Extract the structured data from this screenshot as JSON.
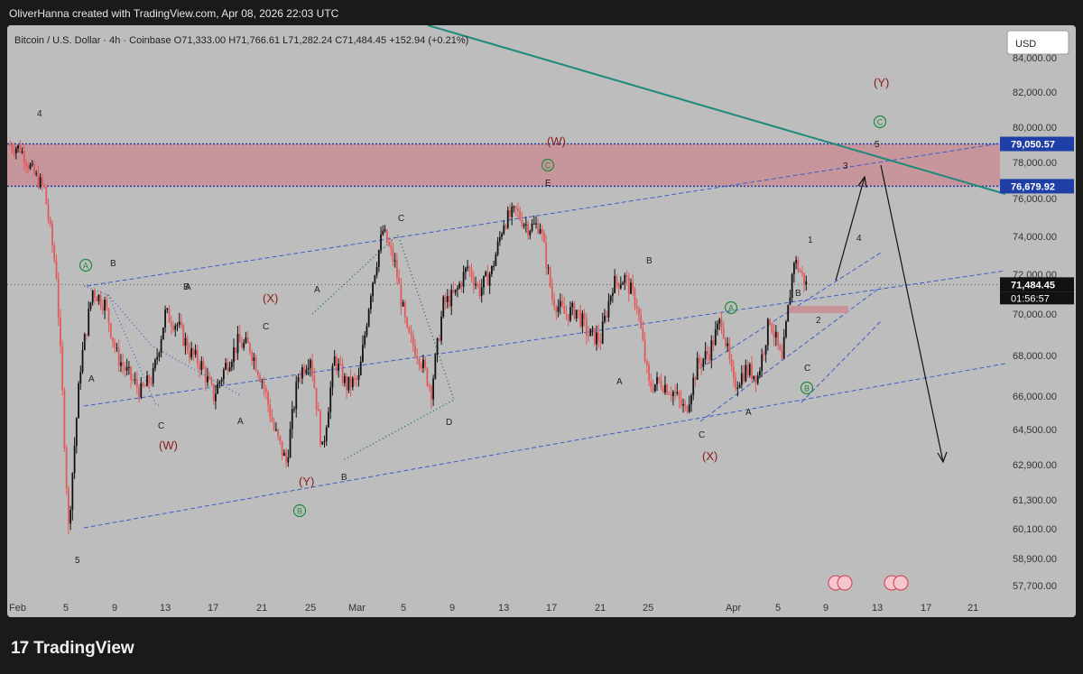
{
  "header": {
    "author_line": "OliverHanna created with TradingView.com, Apr 08, 2026 22:03 UTC",
    "symbol_line": "Bitcoin / U.S. Dollar · 4h · Coinbase  O71,333.00  H71,766.61  L71,282.24  C71,484.45  +152.94 (+0.21%)",
    "currency_button": "USD"
  },
  "footer": {
    "brand": "TradingView",
    "brand_mark": "17"
  },
  "chart_data": {
    "type": "line",
    "title": "",
    "series": [
      {
        "x": [
          "2026-02-01",
          "2026-02-02",
          "2026-02-03",
          "2026-02-04",
          "2026-02-05",
          "2026-02-06",
          "2026-02-07",
          "2026-02-08",
          "2026-02-09",
          "2026-02-10",
          "2026-02-11",
          "2026-02-12",
          "2026-02-13",
          "2026-02-14",
          "2026-02-15",
          "2026-02-16",
          "2026-02-17",
          "2026-02-18",
          "2026-02-19",
          "2026-02-20",
          "2026-02-21",
          "2026-02-22",
          "2026-02-23",
          "2026-02-24",
          "2026-02-25",
          "2026-02-26",
          "2026-02-27",
          "2026-02-28",
          "2026-03-01",
          "2026-03-02",
          "2026-03-03",
          "2026-03-04",
          "2026-03-05",
          "2026-03-06",
          "2026-03-07",
          "2026-03-08",
          "2026-03-09",
          "2026-03-10",
          "2026-03-11",
          "2026-03-12",
          "2026-03-13",
          "2026-03-14",
          "2026-03-15",
          "2026-03-16",
          "2026-03-17",
          "2026-03-18",
          "2026-03-19",
          "2026-03-20",
          "2026-03-21",
          "2026-03-22",
          "2026-03-23",
          "2026-03-24",
          "2026-03-25",
          "2026-03-26",
          "2026-03-27",
          "2026-03-28",
          "2026-03-29",
          "2026-03-30",
          "2026-03-31",
          "2026-04-01",
          "2026-04-02",
          "2026-04-03",
          "2026-04-04",
          "2026-04-05",
          "2026-04-06",
          "2026-04-07",
          "2026-04-08"
        ],
        "values": [
          79000,
          78800,
          77500,
          76500,
          72000,
          60100,
          67500,
          71200,
          70500,
          68000,
          67000,
          66200,
          67000,
          70000,
          69500,
          68200,
          67500,
          66000,
          67500,
          68600,
          68400,
          66800,
          64500,
          63000,
          67000,
          68000,
          63500,
          67800,
          66500,
          66800,
          71200,
          74300,
          72500,
          69000,
          68000,
          66300,
          70500,
          71000,
          72400,
          71200,
          72200,
          74800,
          75300,
          74500,
          74600,
          70800,
          70000,
          70200,
          69000,
          68800,
          71500,
          71800,
          70500,
          66500,
          66700,
          66200,
          65300,
          67500,
          68200,
          69800,
          66500,
          67300,
          67000,
          69800,
          67600,
          72800,
          71484
        ]
      }
    ],
    "price_levels": [
      "84,000.00",
      "82,000.00",
      "80,000.00",
      "78,000.00",
      "76,000.00",
      "74,000.00",
      "72,000.00",
      "70,000.00",
      "68,000.00",
      "66,000.00",
      "64,500.00",
      "62,900.00",
      "61,300.00",
      "60,100.00",
      "58,900.00",
      "57,700.00"
    ],
    "date_ticks": [
      "Feb",
      "5",
      "9",
      "13",
      "17",
      "21",
      "25",
      "Mar",
      "5",
      "9",
      "13",
      "17",
      "21",
      "25",
      "Apr",
      "5",
      "9",
      "13",
      "17",
      "21"
    ],
    "current_price_label": "71,484.45",
    "countdown_label": "01:56:57",
    "zone_upper_label": "79,050.57",
    "zone_lower_label": "76,679.92",
    "wave_labels": [
      "4",
      "5",
      "A",
      "B",
      "C",
      "(W)",
      "(X)",
      "(Y)",
      "A",
      "B",
      "C",
      "D",
      "A",
      "B",
      "C",
      "(W)",
      "E",
      "A",
      "B",
      "C",
      "(X)",
      "A",
      "B",
      "C",
      "A",
      "1",
      "2",
      "3",
      "4",
      "5",
      "(Y)"
    ],
    "encircled_labels": [
      "A",
      "B",
      "C",
      "A",
      "B",
      "C"
    ],
    "colors": {
      "candle_down": "#e05a5a",
      "candle_up": "#111111",
      "zone": "#c98f96",
      "trendline": "#1e8a7a",
      "channel": "#3d5ec9",
      "price_tag": "#111111",
      "level_tag": "#1f3fa6"
    }
  }
}
